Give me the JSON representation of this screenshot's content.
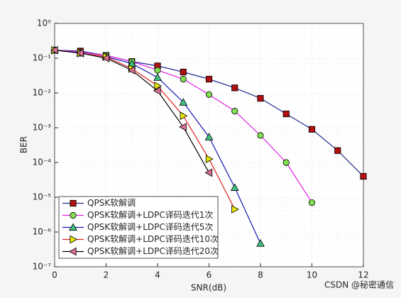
{
  "chart_data": {
    "type": "line",
    "log_y": true,
    "grid": true,
    "minor_grid": true,
    "legend": "lower left",
    "xlabel": "SNR(dB)",
    "ylabel": "BER",
    "xlim": [
      0,
      12
    ],
    "xticks": [
      0,
      2,
      4,
      6,
      8,
      10,
      12
    ],
    "ylim": [
      1e-07,
      1
    ],
    "yticks": [
      {
        "value": 1e-07,
        "label": "10⁻⁷"
      },
      {
        "value": 1e-06,
        "label": "10⁻⁶"
      },
      {
        "value": 1e-05,
        "label": "10⁻⁵"
      },
      {
        "value": 0.0001,
        "label": "10⁻⁴"
      },
      {
        "value": 0.001,
        "label": "10⁻³"
      },
      {
        "value": 0.01,
        "label": "10⁻²"
      },
      {
        "value": 0.1,
        "label": "10⁻¹"
      },
      {
        "value": 1,
        "label": "10⁰"
      }
    ],
    "series": [
      {
        "name": "QPSK软解调",
        "color": "#1f2a8c",
        "marker": "square",
        "marker_color": "#b01010",
        "x": [
          0,
          1,
          2,
          3,
          4,
          5,
          6,
          7,
          8,
          9,
          10,
          11,
          12
        ],
        "values": [
          0.17,
          0.16,
          0.12,
          0.08,
          0.06,
          0.04,
          0.025,
          0.014,
          0.007,
          0.0025,
          0.0009,
          0.00022,
          4e-05
        ]
      },
      {
        "name": "QPSK软解调+LDPC译码迭代1次",
        "color": "#e020e0",
        "marker": "circle",
        "marker_color": "#80e050",
        "x": [
          0,
          1,
          2,
          3,
          4,
          5,
          6,
          7,
          8,
          9,
          10
        ],
        "values": [
          0.17,
          0.15,
          0.12,
          0.08,
          0.045,
          0.025,
          0.009,
          0.003,
          0.0006,
          0.0001,
          7e-06
        ]
      },
      {
        "name": "QPSK软解调+LDPC译码迭代5次",
        "color": "#1515b0",
        "marker": "triangle-up",
        "marker_color": "#40c080",
        "x": [
          0,
          1,
          2,
          3,
          4,
          5,
          6,
          7,
          8
        ],
        "values": [
          0.17,
          0.14,
          0.11,
          0.07,
          0.028,
          0.0054,
          0.00054,
          1.9e-05,
          4.7e-07
        ]
      },
      {
        "name": "QPSK软解调+LDPC译码迭代10次",
        "color": "#e02020",
        "marker": "triangle-right",
        "marker_color": "#e6e600",
        "x": [
          0,
          1,
          2,
          3,
          4,
          5,
          6,
          7
        ],
        "values": [
          0.17,
          0.14,
          0.11,
          0.05,
          0.016,
          0.0022,
          0.000126,
          4.5e-06
        ]
      },
      {
        "name": "QPSK软解调+LDPC译码迭代20次",
        "color": "#000000",
        "marker": "triangle-left",
        "marker_color": "#d87090",
        "x": [
          0,
          1,
          2,
          3,
          4,
          5,
          6
        ],
        "values": [
          0.17,
          0.14,
          0.1,
          0.045,
          0.0115,
          0.00105,
          5.1e-05
        ]
      }
    ]
  },
  "watermark": "CSDN @秘密通信"
}
